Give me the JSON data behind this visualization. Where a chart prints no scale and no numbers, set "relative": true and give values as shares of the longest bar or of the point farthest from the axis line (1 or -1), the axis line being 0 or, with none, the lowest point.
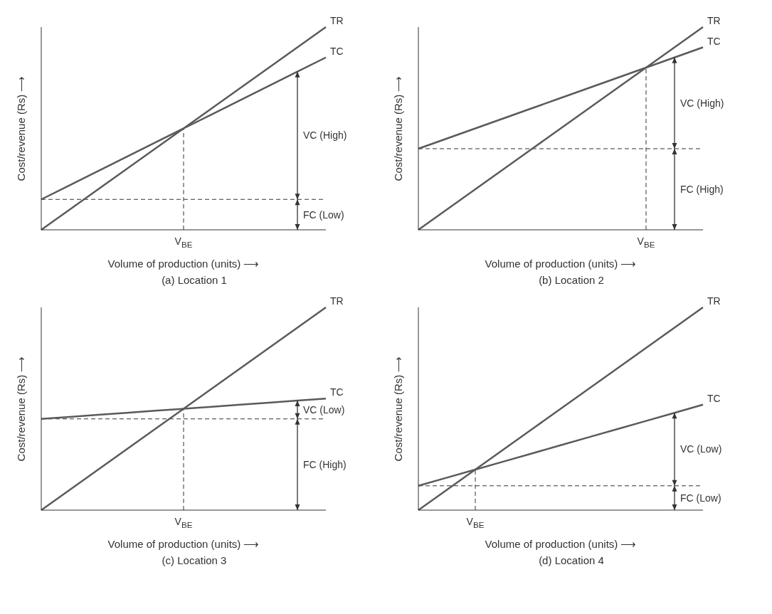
{
  "chart_data": [
    {
      "type": "line",
      "title": "(a) Location 1",
      "xlabel": "Volume of production (units) ⟶",
      "ylabel": "Cost/revenue (Rs) ⟶",
      "relative": true,
      "categories": [
        null,
        null,
        null,
        null,
        null,
        null,
        null,
        null,
        null,
        null,
        null
      ],
      "series": [
        {
          "name": "TR",
          "color": "#5a5a5a",
          "values": [
            0,
            0.1,
            0.2,
            0.3,
            0.4,
            0.5,
            0.6,
            0.7,
            0.8,
            0.9,
            1
          ]
        },
        {
          "name": "TC",
          "color": "#5a5a5a",
          "values": [
            0.15,
            0.22,
            0.29,
            0.36,
            0.43,
            0.5,
            0.57,
            0.64,
            0.71,
            0.78,
            0.85
          ]
        }
      ],
      "ref_lines": [
        {
          "axis": "y",
          "value": 0.15,
          "line_style": "dashed"
        }
      ],
      "annotations": [
        "V$_{BE}$",
        "VC (High)",
        "FC (Low)"
      ]
    },
    {
      "type": "line",
      "title": "(b) Location 2",
      "xlabel": "Volume of production (units) ⟶",
      "ylabel": "Cost/revenue (Rs) ⟶",
      "relative": true,
      "categories": [
        null,
        null,
        null,
        null,
        null,
        null,
        null,
        null,
        null,
        null,
        null
      ],
      "series": [
        {
          "name": "TR",
          "color": "#5a5a5a",
          "values": [
            0,
            0.1,
            0.2,
            0.3,
            0.4,
            0.5,
            0.6,
            0.7,
            0.8,
            0.9,
            1
          ]
        },
        {
          "name": "TC",
          "color": "#5a5a5a",
          "values": [
            0.4,
            0.45,
            0.5,
            0.55,
            0.6,
            0.65,
            0.7,
            0.75,
            0.8,
            0.85,
            0.9
          ]
        }
      ],
      "ref_lines": [
        {
          "axis": "y",
          "value": 0.4,
          "line_style": "dashed"
        }
      ],
      "annotations": [
        "V$_{BE}$",
        "VC (High)",
        "FC (High)"
      ]
    },
    {
      "type": "line",
      "title": "(c) Location 3",
      "xlabel": "Volume of production (units) ⟶",
      "ylabel": "Cost/revenue (Rs) ⟶",
      "relative": true,
      "categories": [
        null,
        null,
        null,
        null,
        null,
        null,
        null,
        null,
        null,
        null,
        null
      ],
      "series": [
        {
          "name": "TR",
          "color": "#5a5a5a",
          "values": [
            0,
            0.1,
            0.2,
            0.3,
            0.4,
            0.5,
            0.6,
            0.7,
            0.8,
            0.9,
            1
          ]
        },
        {
          "name": "TC",
          "color": "#5a5a5a",
          "values": [
            0.45,
            0.46,
            0.47,
            0.48,
            0.49,
            0.5,
            0.51,
            0.52,
            0.53,
            0.54,
            0.55
          ]
        }
      ],
      "ref_lines": [
        {
          "axis": "y",
          "value": 0.45,
          "line_style": "dashed"
        }
      ],
      "annotations": [
        "V$_{BE}$",
        "VC (Low)",
        "FC (High)"
      ]
    },
    {
      "type": "line",
      "title": "(d) Location 4",
      "xlabel": "Volume of production (units) ⟶",
      "ylabel": "Cost/revenue (Rs) ⟶",
      "relative": true,
      "categories": [
        null,
        null,
        null,
        null,
        null,
        null,
        null,
        null,
        null,
        null,
        null
      ],
      "series": [
        {
          "name": "TR",
          "color": "#5a5a5a",
          "values": [
            0,
            0.1,
            0.2,
            0.3,
            0.4,
            0.5,
            0.6,
            0.7,
            0.8,
            0.9,
            1
          ]
        },
        {
          "name": "TC",
          "color": "#5a5a5a",
          "values": [
            0.12,
            0.16,
            0.2,
            0.24,
            0.28,
            0.32,
            0.36,
            0.4,
            0.44,
            0.48,
            0.52
          ]
        }
      ],
      "ref_lines": [
        {
          "axis": "y",
          "value": 0.12,
          "line_style": "dashed"
        }
      ],
      "annotations": [
        "V$_{BE}$",
        "VC (Low)",
        "FC (Low)"
      ]
    }
  ]
}
